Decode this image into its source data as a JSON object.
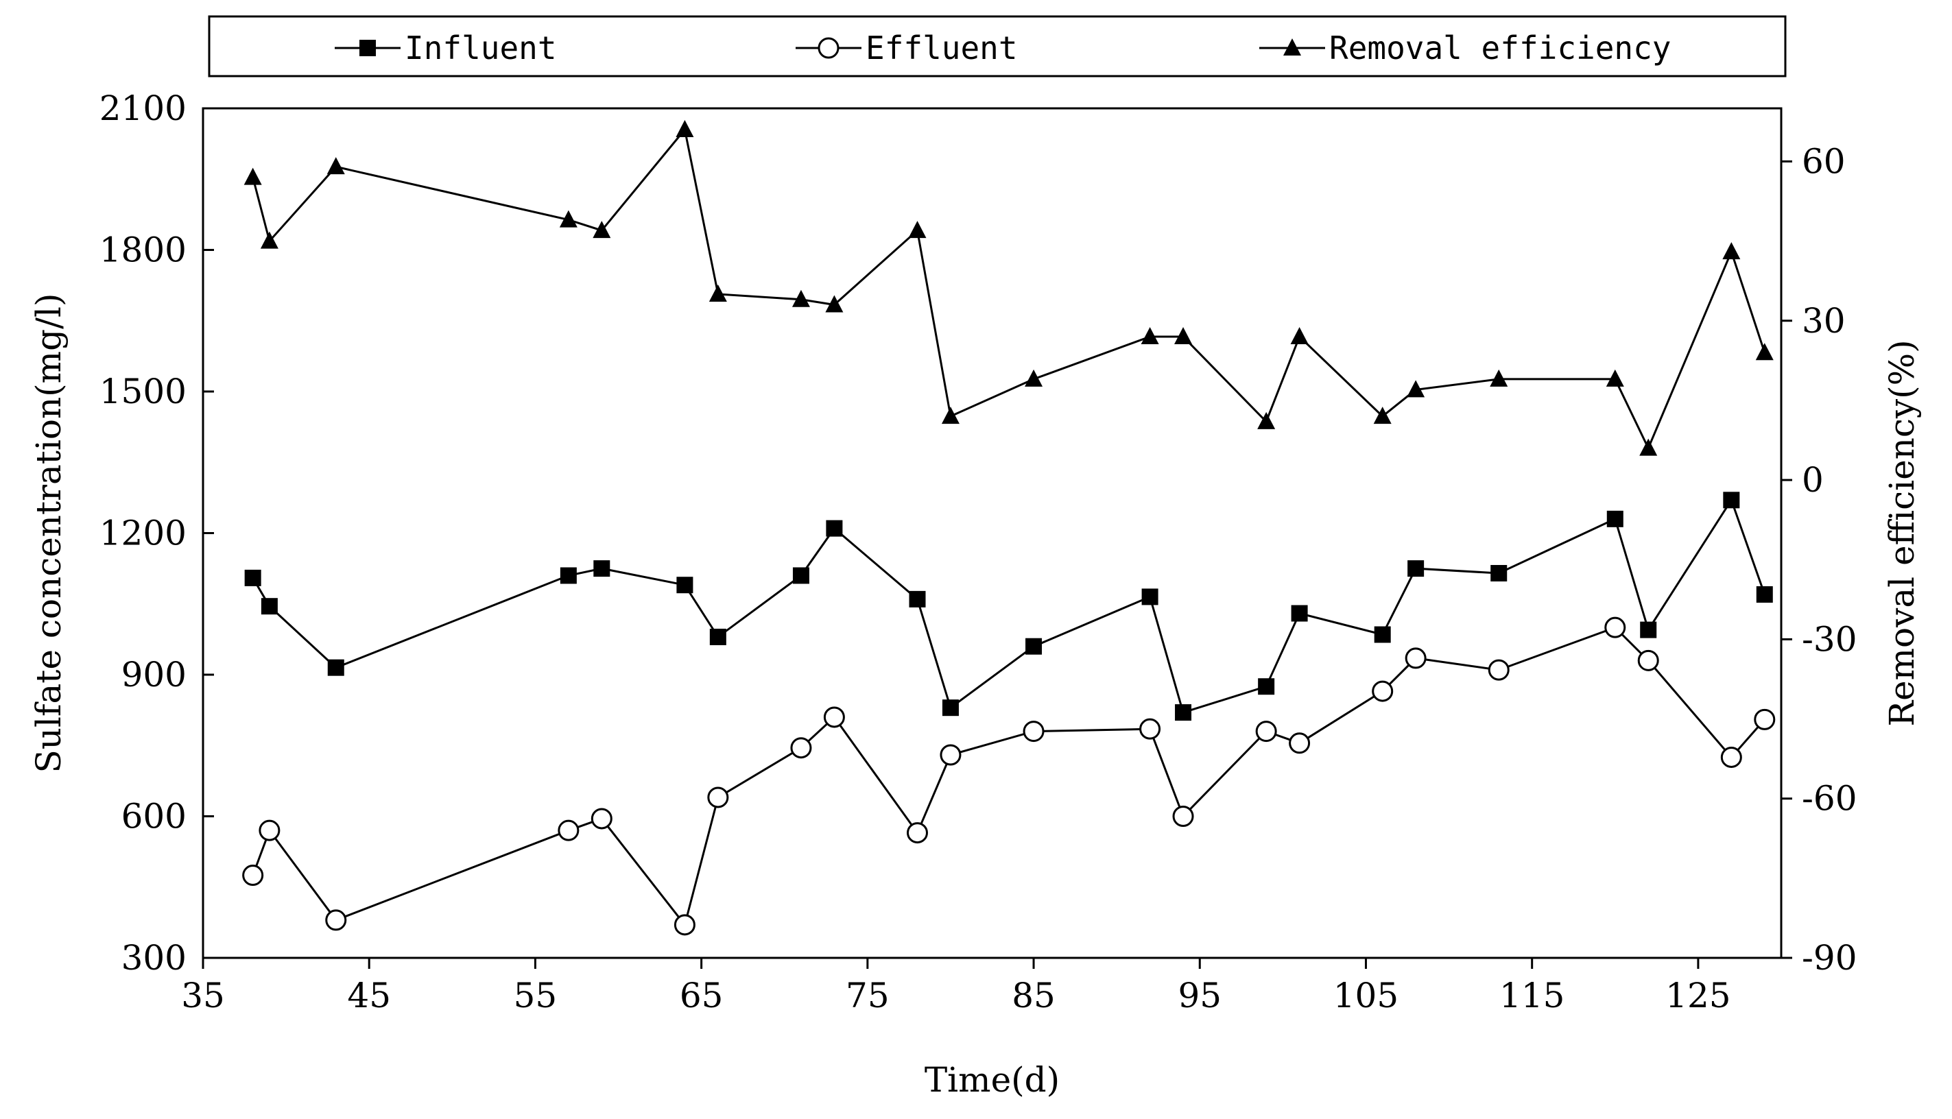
{
  "chart_data": {
    "type": "line",
    "xlabel": "Time(d)",
    "ylabel_left": "Sulfate concentration(mg/l)",
    "ylabel_right": "Removal efficiency(%)",
    "xlim": [
      35,
      130
    ],
    "ylim_left": [
      300,
      2100
    ],
    "ylim_right": [
      -90,
      70
    ],
    "x_ticks": [
      35,
      45,
      55,
      65,
      75,
      85,
      95,
      105,
      115,
      125
    ],
    "y_left_ticks": [
      300,
      600,
      900,
      1200,
      1500,
      1800,
      2100
    ],
    "y_right_ticks": [
      -90,
      -60,
      -30,
      0,
      30,
      60
    ],
    "x_tick_labels": [
      "35",
      "45",
      "55",
      "65",
      "75",
      "85",
      "95",
      "105",
      "115",
      "125"
    ],
    "y_left_tick_labels": [
      "300",
      "600",
      "900",
      "1200",
      "1500",
      "1800",
      "2100"
    ],
    "y_right_tick_labels": [
      "-90",
      "-60",
      "-30",
      "0",
      "30",
      "60"
    ],
    "grid": false,
    "legend_position": "top",
    "series": [
      {
        "name": "Influent",
        "axis": "left",
        "marker": "square-filled",
        "points": [
          [
            38,
            1105
          ],
          [
            39,
            1045
          ],
          [
            43,
            915
          ],
          [
            57,
            1110
          ],
          [
            59,
            1125
          ],
          [
            64,
            1090
          ],
          [
            66,
            980
          ],
          [
            71,
            1110
          ],
          [
            73,
            1210
          ],
          [
            78,
            1060
          ],
          [
            80,
            830
          ],
          [
            85,
            960
          ],
          [
            92,
            1065
          ],
          [
            94,
            820
          ],
          [
            99,
            875
          ],
          [
            101,
            1030
          ],
          [
            106,
            985
          ],
          [
            108,
            1125
          ],
          [
            113,
            1115
          ],
          [
            120,
            1230
          ],
          [
            122,
            995
          ],
          [
            127,
            1270
          ],
          [
            129,
            1070
          ]
        ]
      },
      {
        "name": "Effluent",
        "axis": "left",
        "marker": "circle-open",
        "points": [
          [
            38,
            475
          ],
          [
            39,
            570
          ],
          [
            43,
            380
          ],
          [
            57,
            570
          ],
          [
            59,
            595
          ],
          [
            64,
            370
          ],
          [
            66,
            640
          ],
          [
            71,
            745
          ],
          [
            73,
            810
          ],
          [
            78,
            565
          ],
          [
            80,
            730
          ],
          [
            85,
            780
          ],
          [
            92,
            785
          ],
          [
            94,
            600
          ],
          [
            99,
            780
          ],
          [
            101,
            755
          ],
          [
            106,
            865
          ],
          [
            108,
            935
          ],
          [
            113,
            910
          ],
          [
            120,
            1000
          ],
          [
            122,
            930
          ],
          [
            127,
            725
          ],
          [
            129,
            805
          ]
        ]
      },
      {
        "name": "Removal efficiency",
        "axis": "right",
        "marker": "triangle-filled",
        "points": [
          [
            38,
            57
          ],
          [
            39,
            45
          ],
          [
            43,
            59
          ],
          [
            57,
            49
          ],
          [
            59,
            47
          ],
          [
            64,
            66
          ],
          [
            66,
            35
          ],
          [
            71,
            34
          ],
          [
            73,
            33
          ],
          [
            78,
            47
          ],
          [
            80,
            12
          ],
          [
            85,
            19
          ],
          [
            92,
            27
          ],
          [
            94,
            27
          ],
          [
            99,
            11
          ],
          [
            101,
            27
          ],
          [
            106,
            12
          ],
          [
            108,
            17
          ],
          [
            113,
            19
          ],
          [
            120,
            19
          ],
          [
            122,
            6
          ],
          [
            127,
            43
          ],
          [
            129,
            24
          ]
        ]
      }
    ]
  }
}
